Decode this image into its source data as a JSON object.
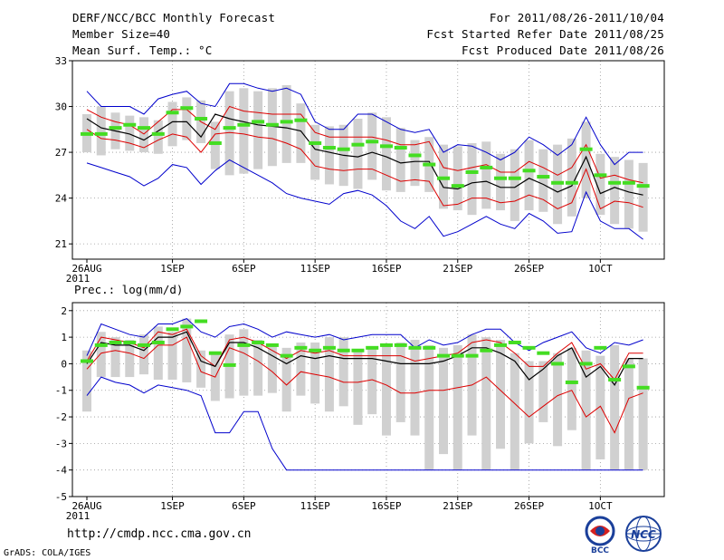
{
  "header": {
    "title": "DERF/NCC/BCC Monthly Forecast",
    "member_size": "Member Size=40",
    "variable": "Mean Surf. Temp.: °C",
    "period": "For 2011/08/26-2011/10/04",
    "started": "Fcst Started Refer Date 2011/08/25",
    "produced": "Fcst Produced Date 2011/08/26"
  },
  "footer": {
    "url": "http://cmdp.ncc.cma.gov.cn",
    "grads": "GrADS: COLA/IGES",
    "logo_bcc": "BCC",
    "logo_ncc": "NCC"
  },
  "colors": {
    "envelope": "#0000cc",
    "ensemble_mean": "#000000",
    "spread": "#dd0000",
    "observed": "#44dd22",
    "box": "#d0d0d0",
    "grid": "#999999"
  },
  "chart_data": [
    {
      "type": "box-ensemble",
      "title": "Mean Surf. Temp.: °C",
      "xlabel": "",
      "ylabel": "",
      "ylim": [
        20,
        33
      ],
      "yticks": [
        21,
        24,
        27,
        30,
        33
      ],
      "grid": "dotted",
      "xticks": [
        {
          "day": 0,
          "label": "26AUG",
          "sublabel": "2011"
        },
        {
          "day": 6,
          "label": "1SEP"
        },
        {
          "day": 11,
          "label": "6SEP"
        },
        {
          "day": 16,
          "label": "11SEP"
        },
        {
          "day": 21,
          "label": "16SEP"
        },
        {
          "day": 26,
          "label": "21SEP"
        },
        {
          "day": 31,
          "label": "26SEP"
        },
        {
          "day": 36,
          "label": "1OCT"
        }
      ],
      "days": [
        0,
        1,
        2,
        3,
        4,
        5,
        6,
        7,
        8,
        9,
        10,
        11,
        12,
        13,
        14,
        15,
        16,
        17,
        18,
        19,
        20,
        21,
        22,
        23,
        24,
        25,
        26,
        27,
        28,
        29,
        30,
        31,
        32,
        33,
        34,
        35,
        36,
        37,
        38,
        39
      ],
      "box_low": [
        27.0,
        26.8,
        27.2,
        27.1,
        27.0,
        26.9,
        27.4,
        27.8,
        27.6,
        25.9,
        25.5,
        25.6,
        25.9,
        26.1,
        26.3,
        26.3,
        25.2,
        24.9,
        24.8,
        24.6,
        25.2,
        24.5,
        24.4,
        24.8,
        24.4,
        23.3,
        23.2,
        22.9,
        23.3,
        23.2,
        22.5,
        23.2,
        23.1,
        22.3,
        22.8,
        24.0,
        22.9,
        22.3,
        22.0,
        21.8
      ],
      "box_high": [
        29.5,
        30.0,
        29.6,
        29.4,
        29.3,
        29.1,
        30.3,
        30.6,
        30.4,
        29.0,
        31.0,
        31.2,
        31.0,
        31.2,
        31.4,
        30.2,
        28.8,
        28.7,
        28.8,
        29.2,
        29.6,
        29.3,
        28.6,
        27.8,
        28.0,
        27.5,
        27.4,
        27.6,
        27.7,
        26.9,
        27.2,
        27.8,
        27.2,
        27.5,
        27.9,
        29.0,
        26.9,
        26.7,
        26.5,
        26.3
      ],
      "envelope_high": [
        31.0,
        30.0,
        30.0,
        30.0,
        29.5,
        30.5,
        30.8,
        31.0,
        30.2,
        30.0,
        31.5,
        31.5,
        31.2,
        31.0,
        31.2,
        30.8,
        29.0,
        28.5,
        28.5,
        29.5,
        29.5,
        29.0,
        28.5,
        28.3,
        28.5,
        27.0,
        27.5,
        27.4,
        27.0,
        26.5,
        27.0,
        28.0,
        27.5,
        26.8,
        27.5,
        29.3,
        27.5,
        26.2,
        27.0,
        27.0
      ],
      "envelope_low": [
        26.3,
        26.0,
        25.7,
        25.4,
        24.8,
        25.3,
        26.2,
        26.0,
        24.9,
        25.8,
        26.5,
        26.0,
        25.5,
        25.0,
        24.3,
        24.0,
        23.8,
        23.6,
        24.3,
        24.5,
        24.2,
        23.5,
        22.5,
        22.0,
        22.8,
        21.5,
        21.8,
        22.3,
        22.8,
        22.3,
        22.0,
        23.0,
        22.5,
        21.7,
        21.8,
        24.4,
        22.5,
        22.0,
        22.0,
        21.3
      ],
      "spread_high": [
        29.8,
        29.3,
        29.0,
        28.8,
        28.2,
        29.0,
        29.8,
        29.8,
        29.0,
        28.5,
        30.0,
        29.7,
        29.6,
        29.5,
        29.5,
        29.5,
        28.3,
        28.0,
        28.0,
        28.0,
        28.0,
        27.8,
        27.5,
        27.5,
        27.7,
        26.0,
        25.8,
        26.0,
        26.2,
        25.7,
        25.7,
        26.4,
        26.0,
        25.5,
        26.0,
        27.5,
        25.3,
        25.5,
        25.2,
        25.0
      ],
      "spread_low": [
        28.5,
        27.9,
        27.8,
        27.6,
        27.3,
        27.8,
        28.2,
        28.0,
        27.0,
        28.2,
        28.3,
        28.2,
        28.0,
        27.9,
        27.6,
        27.2,
        26.1,
        25.9,
        25.8,
        25.9,
        25.9,
        25.5,
        25.1,
        25.2,
        25.1,
        23.5,
        23.6,
        24.0,
        24.0,
        23.7,
        23.8,
        24.2,
        23.9,
        23.3,
        23.7,
        25.9,
        23.3,
        23.8,
        23.7,
        23.4
      ],
      "ensemble_mean": [
        29.2,
        28.6,
        28.4,
        28.2,
        27.8,
        28.4,
        29.0,
        29.0,
        28.0,
        29.5,
        29.2,
        29.0,
        28.8,
        28.7,
        28.6,
        28.4,
        27.2,
        27.0,
        26.8,
        26.7,
        27.0,
        26.7,
        26.3,
        26.4,
        26.4,
        24.7,
        24.6,
        25.0,
        25.1,
        24.7,
        24.7,
        25.3,
        24.9,
        24.4,
        24.8,
        26.7,
        24.3,
        24.7,
        24.4,
        24.2
      ],
      "observed": [
        28.2,
        28.2,
        28.6,
        28.8,
        28.6,
        28.2,
        29.6,
        29.9,
        29.2,
        27.6,
        28.6,
        28.8,
        29.0,
        28.8,
        29.0,
        29.1,
        27.6,
        27.3,
        27.2,
        27.5,
        27.7,
        27.4,
        27.3,
        26.8,
        26.2,
        25.3,
        24.8,
        25.7,
        26.0,
        25.3,
        25.3,
        25.8,
        25.4,
        25.0,
        25.0,
        27.2,
        25.5,
        25.0,
        25.0,
        24.8
      ]
    },
    {
      "type": "box-ensemble",
      "title": "Prec.: log(mm/d)",
      "xlabel": "",
      "ylabel": "",
      "ylim": [
        -5,
        2.3
      ],
      "yticks": [
        -5,
        -4,
        -3,
        -2,
        -1,
        0,
        1,
        2
      ],
      "grid": "dotted",
      "xticks": [
        {
          "day": 0,
          "label": "26AUG",
          "sublabel": "2011"
        },
        {
          "day": 6,
          "label": "1SEP"
        },
        {
          "day": 11,
          "label": "6SEP"
        },
        {
          "day": 16,
          "label": "11SEP"
        },
        {
          "day": 21,
          "label": "16SEP"
        },
        {
          "day": 26,
          "label": "21SEP"
        },
        {
          "day": 31,
          "label": "26SEP"
        },
        {
          "day": 36,
          "label": "1OCT"
        }
      ],
      "days": [
        0,
        1,
        2,
        3,
        4,
        5,
        6,
        7,
        8,
        9,
        10,
        11,
        12,
        13,
        14,
        15,
        16,
        17,
        18,
        19,
        20,
        21,
        22,
        23,
        24,
        25,
        26,
        27,
        28,
        29,
        30,
        31,
        32,
        33,
        34,
        35,
        36,
        37,
        38,
        39
      ],
      "box_low": [
        -1.8,
        -0.5,
        -0.5,
        -0.5,
        -0.4,
        -0.6,
        -0.6,
        -0.7,
        -0.9,
        -1.4,
        -1.3,
        -1.2,
        -1.2,
        -1.1,
        -1.8,
        -1.2,
        -1.5,
        -1.8,
        -1.6,
        -2.3,
        -1.9,
        -2.7,
        -2.2,
        -2.7,
        -4.0,
        -3.4,
        -4.0,
        -2.7,
        -4.0,
        -3.2,
        -4.0,
        -3.0,
        -2.2,
        -3.1,
        -2.5,
        -4.0,
        -3.6,
        -4.0,
        -4.0,
        -4.0
      ],
      "box_high": [
        0.5,
        1.2,
        1.0,
        0.9,
        1.1,
        1.4,
        1.2,
        1.7,
        0.5,
        0.4,
        1.1,
        1.3,
        0.9,
        0.7,
        0.6,
        0.8,
        0.8,
        1.0,
        1.0,
        0.5,
        0.6,
        0.7,
        0.8,
        0.9,
        0.7,
        0.6,
        0.7,
        1.1,
        1.0,
        0.9,
        0.4,
        0.1,
        0.1,
        0.4,
        0.6,
        0.5,
        0.3,
        0.7,
        0.2,
        0.2
      ],
      "envelope_high": [
        0.3,
        1.5,
        1.3,
        1.1,
        1.0,
        1.5,
        1.5,
        1.7,
        1.2,
        1.0,
        1.4,
        1.5,
        1.3,
        1.0,
        1.2,
        1.1,
        1.0,
        1.1,
        0.9,
        1.0,
        1.1,
        1.1,
        1.1,
        0.6,
        0.9,
        0.7,
        0.8,
        1.1,
        1.3,
        1.3,
        0.8,
        0.5,
        0.8,
        1.0,
        1.2,
        0.6,
        0.4,
        0.8,
        0.7,
        0.9
      ],
      "envelope_low": [
        -1.2,
        -0.5,
        -0.7,
        -0.8,
        -1.1,
        -0.8,
        -0.9,
        -1.0,
        -1.2,
        -2.6,
        -2.6,
        -1.8,
        -1.8,
        -3.2,
        -4.0,
        -4.0,
        -4.0,
        -4.0,
        -4.0,
        -4.0,
        -4.0,
        -4.0,
        -4.0,
        -4.0,
        -4.0,
        -4.0,
        -4.0,
        -4.0,
        -4.0,
        -4.0,
        -4.0,
        -4.0,
        -4.0,
        -4.0,
        -4.0,
        -4.0,
        -4.0,
        -4.0,
        -4.0,
        -4.0
      ],
      "spread_high": [
        0.1,
        1.0,
        0.9,
        0.8,
        0.6,
        1.2,
        1.1,
        1.3,
        0.3,
        -0.1,
        0.9,
        1.0,
        0.8,
        0.5,
        0.2,
        0.5,
        0.4,
        0.5,
        0.3,
        0.3,
        0.3,
        0.3,
        0.3,
        0.1,
        0.2,
        0.3,
        0.4,
        0.8,
        0.9,
        0.8,
        0.4,
        -0.1,
        -0.1,
        0.4,
        0.8,
        -0.2,
        0.0,
        -0.6,
        0.4,
        0.4
      ],
      "spread_low": [
        -0.2,
        0.4,
        0.5,
        0.4,
        0.2,
        0.7,
        0.7,
        1.0,
        -0.3,
        -0.5,
        0.6,
        0.4,
        0.1,
        -0.3,
        -0.8,
        -0.3,
        -0.4,
        -0.5,
        -0.7,
        -0.7,
        -0.6,
        -0.8,
        -1.1,
        -1.1,
        -1.0,
        -1.0,
        -0.9,
        -0.8,
        -0.5,
        -1.0,
        -1.5,
        -2.0,
        -1.6,
        -1.2,
        -1.0,
        -2.0,
        -1.6,
        -2.6,
        -1.3,
        -1.1
      ],
      "ensemble_mean": [
        0.0,
        0.8,
        0.7,
        0.7,
        0.5,
        1.0,
        1.0,
        1.2,
        0.1,
        -0.1,
        0.8,
        0.8,
        0.6,
        0.3,
        0.0,
        0.3,
        0.2,
        0.3,
        0.2,
        0.2,
        0.2,
        0.1,
        0.0,
        0.0,
        0.0,
        0.1,
        0.3,
        0.6,
        0.6,
        0.4,
        0.1,
        -0.6,
        -0.2,
        0.3,
        0.6,
        -0.5,
        -0.1,
        -0.8,
        0.2,
        0.2
      ],
      "observed": [
        0.1,
        0.7,
        0.8,
        0.8,
        0.7,
        0.8,
        1.3,
        1.4,
        1.6,
        0.4,
        -0.05,
        0.7,
        0.8,
        0.7,
        0.3,
        0.6,
        0.5,
        0.6,
        0.5,
        0.5,
        0.6,
        0.7,
        0.7,
        0.6,
        0.6,
        0.3,
        0.3,
        0.3,
        0.5,
        0.7,
        0.8,
        0.6,
        0.4,
        0.0,
        -0.7,
        0.0,
        0.6,
        -0.6,
        -0.1,
        -0.9
      ]
    }
  ]
}
